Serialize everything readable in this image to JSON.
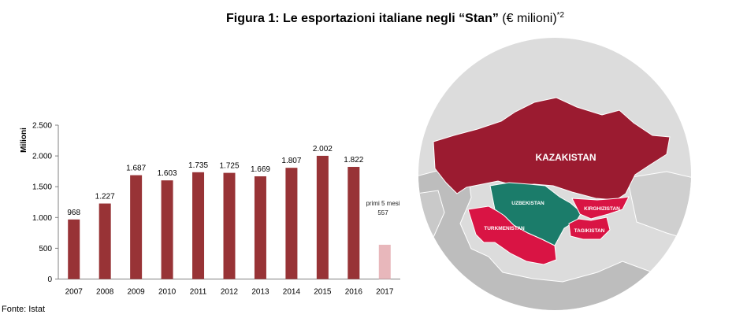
{
  "header": {
    "title_bold": "Figura 1: Le esportazioni italiane negli “Stan”",
    "title_unit": "(€ milioni)",
    "title_sup": "*2"
  },
  "chart_data": {
    "type": "bar",
    "categories": [
      "2007",
      "2008",
      "2009",
      "2010",
      "2011",
      "2012",
      "2013",
      "2014",
      "2015",
      "2016",
      "2017"
    ],
    "values": [
      968,
      1227,
      1687,
      1603,
      1735,
      1725,
      1669,
      1807,
      2002,
      1822,
      557
    ],
    "value_labels": [
      "968",
      "1.227",
      "1.687",
      "1.603",
      "1.735",
      "1.725",
      "1.669",
      "1.807",
      "2.002",
      "1.822",
      ""
    ],
    "ylabel": "Milioni",
    "ylim": [
      0,
      2500
    ],
    "yticks": [
      0,
      500,
      1000,
      1500,
      2000,
      2500
    ],
    "ytick_labels": [
      "0",
      "500",
      "1.000",
      "1.500",
      "2.000",
      "2.500"
    ],
    "grid": false,
    "colors": {
      "bar": "#983336",
      "bar_partial": "#e8b7bb"
    },
    "annotation": {
      "category": "2017",
      "line1": "primi 5 mesi",
      "line2": "557"
    }
  },
  "map": {
    "labels": {
      "kazakistan": "KAZAKISTAN",
      "uzbekistan": "UZBEKISTAN",
      "kirghizistan": "KIRGHIZISTAN",
      "turkmenistan": "TURKMENISTAN",
      "tagikistan": "TAGIKISTAN"
    },
    "colors": {
      "kazakistan": "#9b1b30",
      "uzbekistan": "#1b7c6a",
      "others": "#d91444",
      "circle": "#dcdcdc",
      "land": "#bcbcbc"
    }
  },
  "source": "Fonte: Istat"
}
